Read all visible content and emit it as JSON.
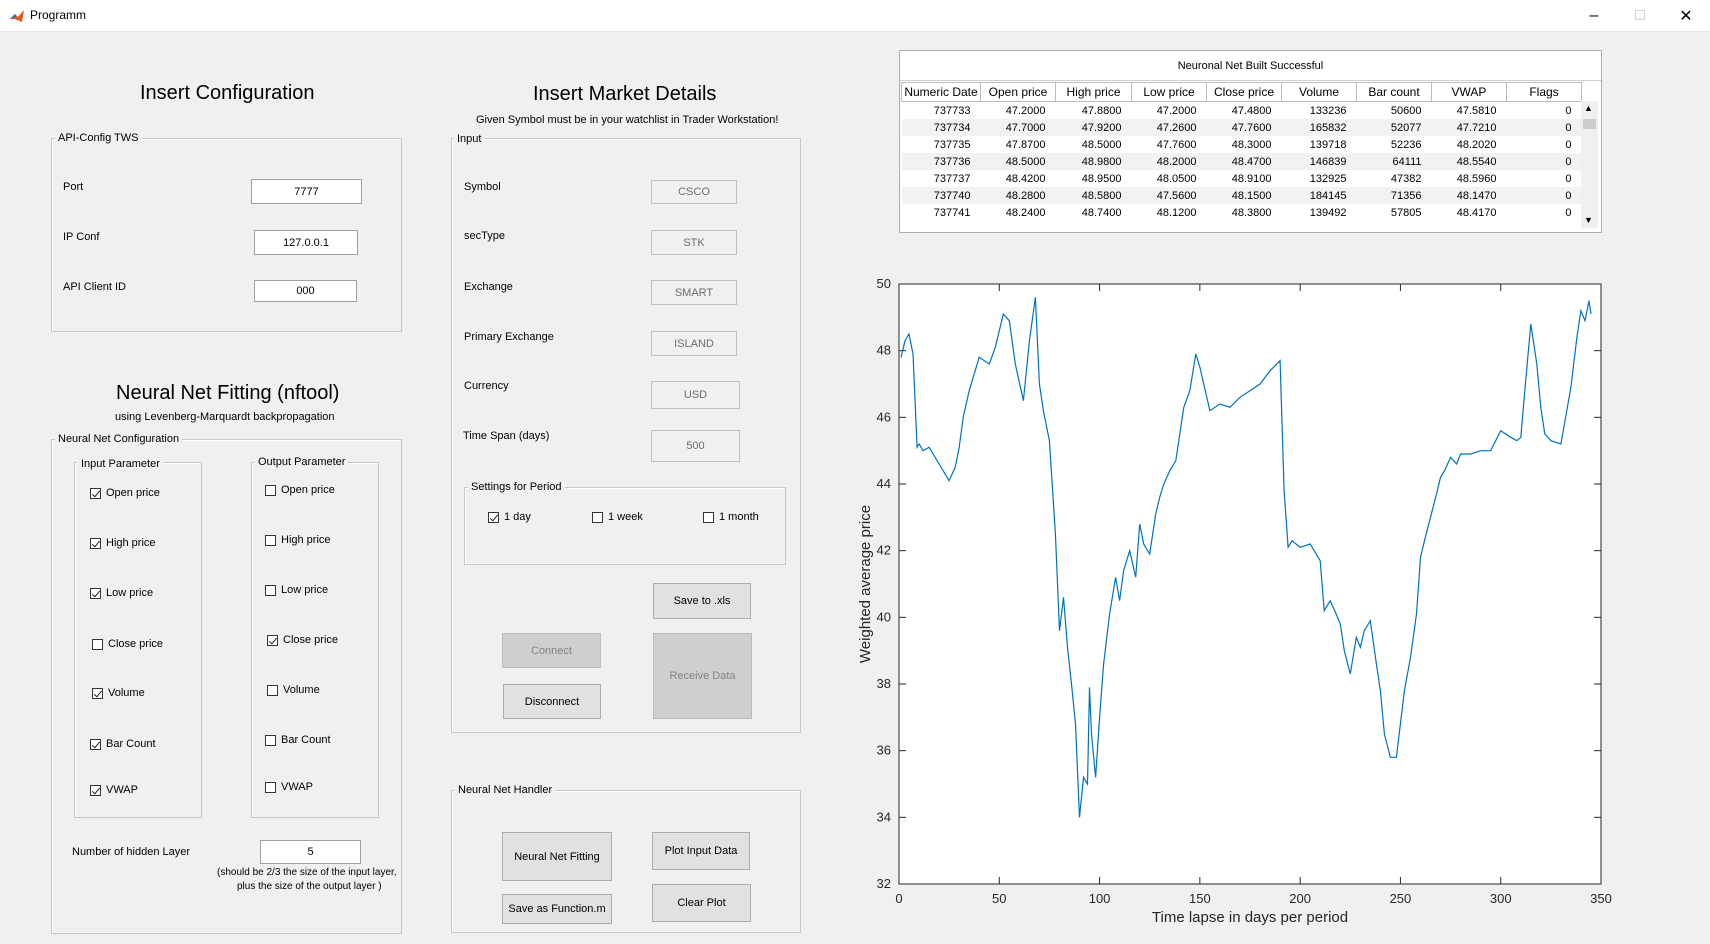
{
  "window": {
    "title": "Programm"
  },
  "config": {
    "heading": "Insert Configuration",
    "group": "API-Config TWS",
    "port": {
      "label": "Port",
      "value": "7777"
    },
    "ip": {
      "label": "IP Conf",
      "value": "127.0.0.1"
    },
    "client": {
      "label": "API Client ID",
      "value": "000"
    }
  },
  "nn": {
    "heading": "Neural Net Fitting (nftool)",
    "subheading": "using Levenberg-Marquardt backpropagation",
    "group": "Neural Net Configuration",
    "input_group": "Input Parameter",
    "output_group": "Output Parameter",
    "inputs": [
      {
        "label": "Open price",
        "checked": true
      },
      {
        "label": "High price",
        "checked": true
      },
      {
        "label": "Low price",
        "checked": true
      },
      {
        "label": "Close price",
        "checked": false
      },
      {
        "label": "Volume",
        "checked": true
      },
      {
        "label": "Bar Count",
        "checked": true
      },
      {
        "label": "VWAP",
        "checked": true
      }
    ],
    "outputs": [
      {
        "label": "Open price",
        "checked": false
      },
      {
        "label": "High price",
        "checked": false
      },
      {
        "label": "Low price",
        "checked": false
      },
      {
        "label": "Close price",
        "checked": true
      },
      {
        "label": "Volume",
        "checked": false
      },
      {
        "label": "Bar Count",
        "checked": false
      },
      {
        "label": "VWAP",
        "checked": false
      }
    ],
    "hidden_label": "Number of hidden Layer",
    "hidden_value": "5",
    "hint1": "(should be 2/3 the size of the input layer,",
    "hint2": "plus the size of the output layer )"
  },
  "market": {
    "heading": "Insert Market Details",
    "subheading": "Given Symbol must be in your watchlist in Trader Workstation!",
    "group": "Input",
    "fields": [
      {
        "label": "Symbol",
        "value": "CSCO"
      },
      {
        "label": "secType",
        "value": "STK"
      },
      {
        "label": "Exchange",
        "value": "SMART"
      },
      {
        "label": "Primary Exchange",
        "value": "ISLAND"
      },
      {
        "label": "Currency",
        "value": "USD"
      },
      {
        "label": "Time Span (days)",
        "value": "500"
      }
    ],
    "period_group": "Settings for Period",
    "periods": [
      {
        "label": "1 day",
        "checked": true
      },
      {
        "label": "1 week",
        "checked": false
      },
      {
        "label": "1 month",
        "checked": false
      }
    ],
    "save_xls": "Save to .xls",
    "connect": "Connect",
    "disconnect": "Disconnect",
    "receive": "Receive Data"
  },
  "handler": {
    "group": "Neural Net Handler",
    "fit": "Neural Net Fitting",
    "plot": "Plot Input Data",
    "save_fn": "Save as Function.m",
    "clear": "Clear Plot"
  },
  "table": {
    "title": "Neuronal Net Built Successful",
    "columns": [
      "Numeric Date",
      "Open price",
      "High price",
      "Low price",
      "Close price",
      "Volume",
      "Bar count",
      "VWAP",
      "Flags"
    ],
    "rows": [
      [
        "737733",
        "47.2000",
        "47.8800",
        "47.2000",
        "47.4800",
        "133236",
        "50600",
        "47.5810",
        "0"
      ],
      [
        "737734",
        "47.7000",
        "47.9200",
        "47.2600",
        "47.7600",
        "165832",
        "52077",
        "47.7210",
        "0"
      ],
      [
        "737735",
        "47.8700",
        "48.5000",
        "47.7600",
        "48.3000",
        "139718",
        "52236",
        "48.2020",
        "0"
      ],
      [
        "737736",
        "48.5000",
        "48.9800",
        "48.2000",
        "48.4700",
        "146839",
        "64111",
        "48.5540",
        "0"
      ],
      [
        "737737",
        "48.4200",
        "48.9500",
        "48.0500",
        "48.9100",
        "132925",
        "47382",
        "48.5960",
        "0"
      ],
      [
        "737740",
        "48.2800",
        "48.5800",
        "47.5600",
        "48.1500",
        "184145",
        "71356",
        "48.1470",
        "0"
      ],
      [
        "737741",
        "48.2400",
        "48.7400",
        "48.1200",
        "48.3800",
        "139492",
        "57805",
        "48.4170",
        "0"
      ]
    ]
  },
  "chart_data": {
    "type": "line",
    "xlabel": "Time lapse in days per period",
    "ylabel": "Weighted average price",
    "xlim": [
      0,
      350
    ],
    "ylim": [
      32,
      50
    ],
    "xticks": [
      "0",
      "50",
      "100",
      "150",
      "200",
      "250",
      "300",
      "350"
    ],
    "yticks": [
      "32",
      "34",
      "36",
      "38",
      "40",
      "42",
      "44",
      "46",
      "48",
      "50"
    ],
    "color": "#0072bd",
    "x": [
      1,
      3,
      5,
      7,
      9,
      10,
      12,
      15,
      18,
      20,
      22,
      25,
      28,
      30,
      32,
      35,
      40,
      45,
      48,
      50,
      52,
      55,
      58,
      62,
      65,
      68,
      70,
      72,
      75,
      78,
      80,
      82,
      84,
      86,
      88,
      90,
      92,
      94,
      95,
      96,
      98,
      100,
      102,
      105,
      108,
      110,
      112,
      115,
      118,
      120,
      122,
      125,
      128,
      130,
      132,
      135,
      138,
      140,
      142,
      145,
      148,
      150,
      155,
      160,
      165,
      170,
      175,
      180,
      185,
      190,
      192,
      194,
      196,
      200,
      205,
      210,
      212,
      215,
      218,
      220,
      222,
      225,
      228,
      230,
      232,
      235,
      238,
      240,
      242,
      245,
      248,
      250,
      252,
      255,
      258,
      260,
      262,
      265,
      268,
      270,
      272,
      275,
      278,
      280,
      285,
      290,
      295,
      300,
      305,
      308,
      310,
      312,
      315,
      318,
      320,
      322,
      325,
      330,
      335,
      338,
      340,
      342,
      344,
      345
    ],
    "y": [
      47.8,
      48.3,
      48.5,
      47.9,
      45.1,
      45.2,
      45.0,
      45.1,
      44.8,
      44.6,
      44.4,
      44.1,
      44.5,
      45.1,
      46.0,
      46.8,
      47.8,
      47.6,
      48.1,
      48.6,
      49.1,
      48.9,
      47.6,
      46.5,
      48.3,
      49.6,
      47.0,
      46.2,
      45.3,
      42.5,
      39.6,
      40.6,
      39.1,
      38.0,
      36.8,
      34.0,
      35.2,
      35.0,
      37.9,
      36.5,
      35.2,
      37.0,
      38.6,
      40.1,
      41.2,
      40.5,
      41.4,
      42.0,
      41.2,
      42.8,
      42.2,
      41.9,
      43.1,
      43.6,
      44.0,
      44.4,
      44.7,
      45.5,
      46.3,
      46.8,
      47.9,
      47.5,
      46.2,
      46.4,
      46.3,
      46.6,
      46.8,
      47.0,
      47.4,
      47.7,
      43.8,
      42.1,
      42.3,
      42.1,
      42.2,
      41.7,
      40.2,
      40.5,
      40.1,
      39.8,
      39.0,
      38.3,
      39.4,
      39.1,
      39.6,
      39.9,
      38.6,
      37.8,
      36.5,
      35.8,
      35.8,
      36.8,
      37.8,
      38.8,
      40.1,
      41.8,
      42.3,
      43.0,
      43.7,
      44.2,
      44.4,
      44.8,
      44.6,
      44.9,
      44.9,
      45.0,
      45.0,
      45.6,
      45.4,
      45.3,
      45.4,
      46.8,
      48.8,
      47.6,
      46.3,
      45.5,
      45.3,
      45.2,
      46.9,
      48.4,
      49.2,
      48.9,
      49.5,
      49.1
    ]
  }
}
